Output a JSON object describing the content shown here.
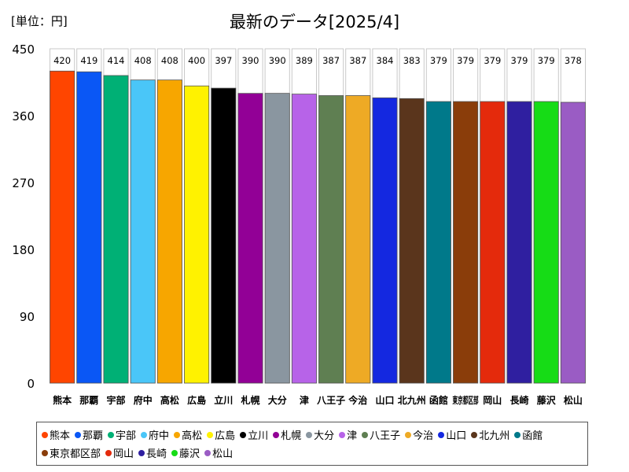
{
  "unit_label": "[単位：円]",
  "chart_data": {
    "type": "bar",
    "title": "最新のデータ[2025/4]",
    "xlabel": "",
    "ylabel": "",
    "ylim": [
      0,
      450
    ],
    "yticks": [
      0,
      90,
      180,
      270,
      360,
      450
    ],
    "grid": false,
    "legend_position": "bottom",
    "categories": [
      "熊本",
      "那覇",
      "宇部",
      "府中",
      "高松",
      "広島",
      "立川",
      "札幌",
      "大分",
      "津",
      "八王子",
      "今治",
      "山口",
      "北九州",
      "函館",
      "東京都区部",
      "岡山",
      "長崎",
      "藤沢",
      "松山"
    ],
    "tick_labels": [
      "熊本",
      "那覇",
      "宇部",
      "府中",
      "高松",
      "広島",
      "立川",
      "札幌",
      "大分",
      "津",
      "八王子",
      "今治",
      "山口",
      "北九州",
      "函館",
      "東京都区部",
      "岡山",
      "長崎",
      "藤沢",
      "松山"
    ],
    "values": [
      420,
      419,
      414,
      408,
      408,
      400,
      397,
      390,
      390,
      389,
      387,
      387,
      384,
      383,
      379,
      379,
      379,
      379,
      379,
      378
    ],
    "colors": [
      "#ff4500",
      "#0a57f5",
      "#00b075",
      "#4ac6f8",
      "#f7a600",
      "#fff200",
      "#000000",
      "#920096",
      "#8a96a0",
      "#b763e8",
      "#5f7f52",
      "#eeaa25",
      "#1428e0",
      "#5a351c",
      "#00798a",
      "#8a3d0a",
      "#e42a0c",
      "#2f1fa0",
      "#16dc16",
      "#9a5cc4"
    ]
  }
}
